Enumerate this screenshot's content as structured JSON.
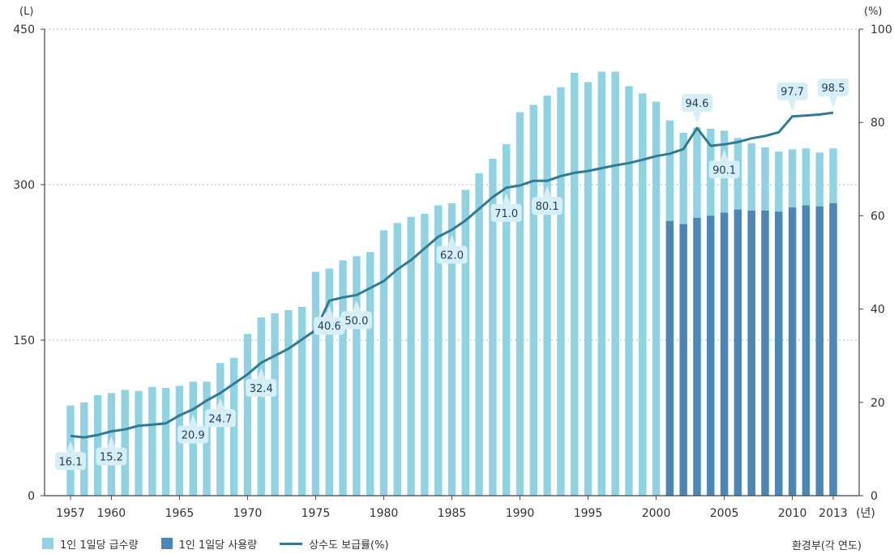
{
  "chart_data": {
    "type": "bar+line",
    "y_left_unit": "(L)",
    "y_right_unit": "(%)",
    "x_unit_suffix": "(년)",
    "ylim_left": [
      0,
      450
    ],
    "ylim_right": [
      0,
      100
    ],
    "yticks_left": [
      "0",
      "150",
      "300",
      "450"
    ],
    "yticks_right": [
      "0",
      "20",
      "40",
      "60",
      "80",
      "100"
    ],
    "xticks": [
      "1957",
      "1960",
      "1965",
      "1970",
      "1975",
      "1980",
      "1985",
      "1990",
      "1995",
      "2000",
      "2005",
      "2010",
      "2013"
    ],
    "x": [
      1957,
      1958,
      1959,
      1960,
      1961,
      1962,
      1963,
      1964,
      1965,
      1966,
      1967,
      1968,
      1969,
      1970,
      1971,
      1972,
      1973,
      1974,
      1975,
      1976,
      1977,
      1978,
      1979,
      1980,
      1981,
      1982,
      1983,
      1984,
      1985,
      1986,
      1987,
      1988,
      1989,
      1990,
      1991,
      1992,
      1993,
      1994,
      1995,
      1996,
      1997,
      1998,
      1999,
      2000,
      2001,
      2002,
      2003,
      2004,
      2005,
      2006,
      2007,
      2008,
      2009,
      2010,
      2011,
      2012,
      2013
    ],
    "grid": "horizontal-dashed",
    "series": [
      {
        "name": "1인 1일당 급수량",
        "type": "bar",
        "axis": "left",
        "color": "#8fd3e3",
        "values": [
          87,
          90,
          97,
          99,
          102,
          101,
          105,
          104,
          106,
          110,
          110,
          128,
          133,
          156,
          172,
          176,
          179,
          182,
          216,
          219,
          227,
          231,
          235,
          256,
          263,
          269,
          272,
          280,
          282,
          295,
          311,
          325,
          339,
          370,
          377,
          386,
          394,
          408,
          399,
          409,
          409,
          395,
          388,
          380,
          362,
          350,
          355,
          354,
          352,
          345,
          340,
          336,
          332,
          334,
          335,
          331,
          335
        ]
      },
      {
        "name": "1인 1일당 사용량",
        "type": "bar",
        "axis": "left",
        "color": "#4a86b6",
        "values": [
          null,
          null,
          null,
          null,
          null,
          null,
          null,
          null,
          null,
          null,
          null,
          null,
          null,
          null,
          null,
          null,
          null,
          null,
          null,
          null,
          null,
          null,
          null,
          null,
          null,
          null,
          null,
          null,
          null,
          null,
          null,
          null,
          null,
          null,
          null,
          null,
          null,
          null,
          null,
          null,
          null,
          null,
          null,
          null,
          265,
          262,
          268,
          270,
          273,
          276,
          275,
          275,
          274,
          278,
          280,
          279,
          282
        ]
      },
      {
        "name": "상수도 보급률(%)",
        "type": "line",
        "axis": "right",
        "color": "#2f7b93",
        "values": [
          12.8,
          12.5,
          13.0,
          13.8,
          14.2,
          15.0,
          15.2,
          15.5,
          17.2,
          18.5,
          20.4,
          22.0,
          24.0,
          26.0,
          28.5,
          30.0,
          31.5,
          33.5,
          35.5,
          41.8,
          42.5,
          43.0,
          44.5,
          46.0,
          48.5,
          50.5,
          53.0,
          55.5,
          57.0,
          59.0,
          61.5,
          64.0,
          66.0,
          66.5,
          67.5,
          67.5,
          68.5,
          69.2,
          69.6,
          70.2,
          70.8,
          71.3,
          72.0,
          72.8,
          73.3,
          74.3,
          78.8,
          75.0,
          75.3,
          75.8,
          76.6,
          77.1,
          77.9,
          81.3,
          81.5,
          81.7,
          82.1
        ]
      }
    ],
    "data_labels": [
      {
        "x": 1957,
        "text": "16.1"
      },
      {
        "x": 1960,
        "text": "15.2"
      },
      {
        "x": 1966,
        "text": "20.9"
      },
      {
        "x": 1968,
        "text": "24.7"
      },
      {
        "x": 1971,
        "text": "32.4"
      },
      {
        "x": 1976,
        "text": "40.6"
      },
      {
        "x": 1978,
        "text": "50.0"
      },
      {
        "x": 1985,
        "text": "62.0"
      },
      {
        "x": 1989,
        "text": "71.0"
      },
      {
        "x": 1992,
        "text": "80.1"
      },
      {
        "x": 2003,
        "text": "94.6"
      },
      {
        "x": 2005,
        "text": "90.1"
      },
      {
        "x": 2010,
        "text": "97.7"
      },
      {
        "x": 2013,
        "text": "98.5"
      }
    ],
    "source": "환경부(각 연도)"
  }
}
